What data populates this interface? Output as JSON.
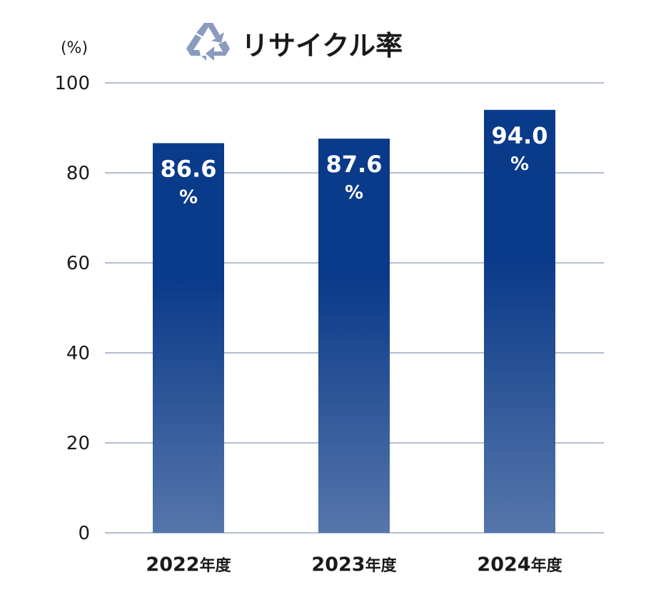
{
  "chart_data": {
    "type": "bar",
    "title": "リサイクル率",
    "title_icon": "recycle-icon",
    "unit_label": "(%)",
    "categories": [
      "2022",
      "2023",
      "2024"
    ],
    "category_suffix": "年度",
    "values": [
      86.6,
      87.6,
      94.0
    ],
    "value_labels": [
      "86.6",
      "87.6",
      "94.0"
    ],
    "value_unit": "%",
    "ylim": [
      0,
      100
    ],
    "yticks": [
      0,
      20,
      40,
      60,
      80,
      100
    ],
    "grid": true,
    "colors": {
      "bar_top": "#0a3a8a",
      "bar_bottom": "#5576aa",
      "grid": "#9aa7c4",
      "icon": "#8a9bbf",
      "text": "#1a1a1a"
    }
  }
}
